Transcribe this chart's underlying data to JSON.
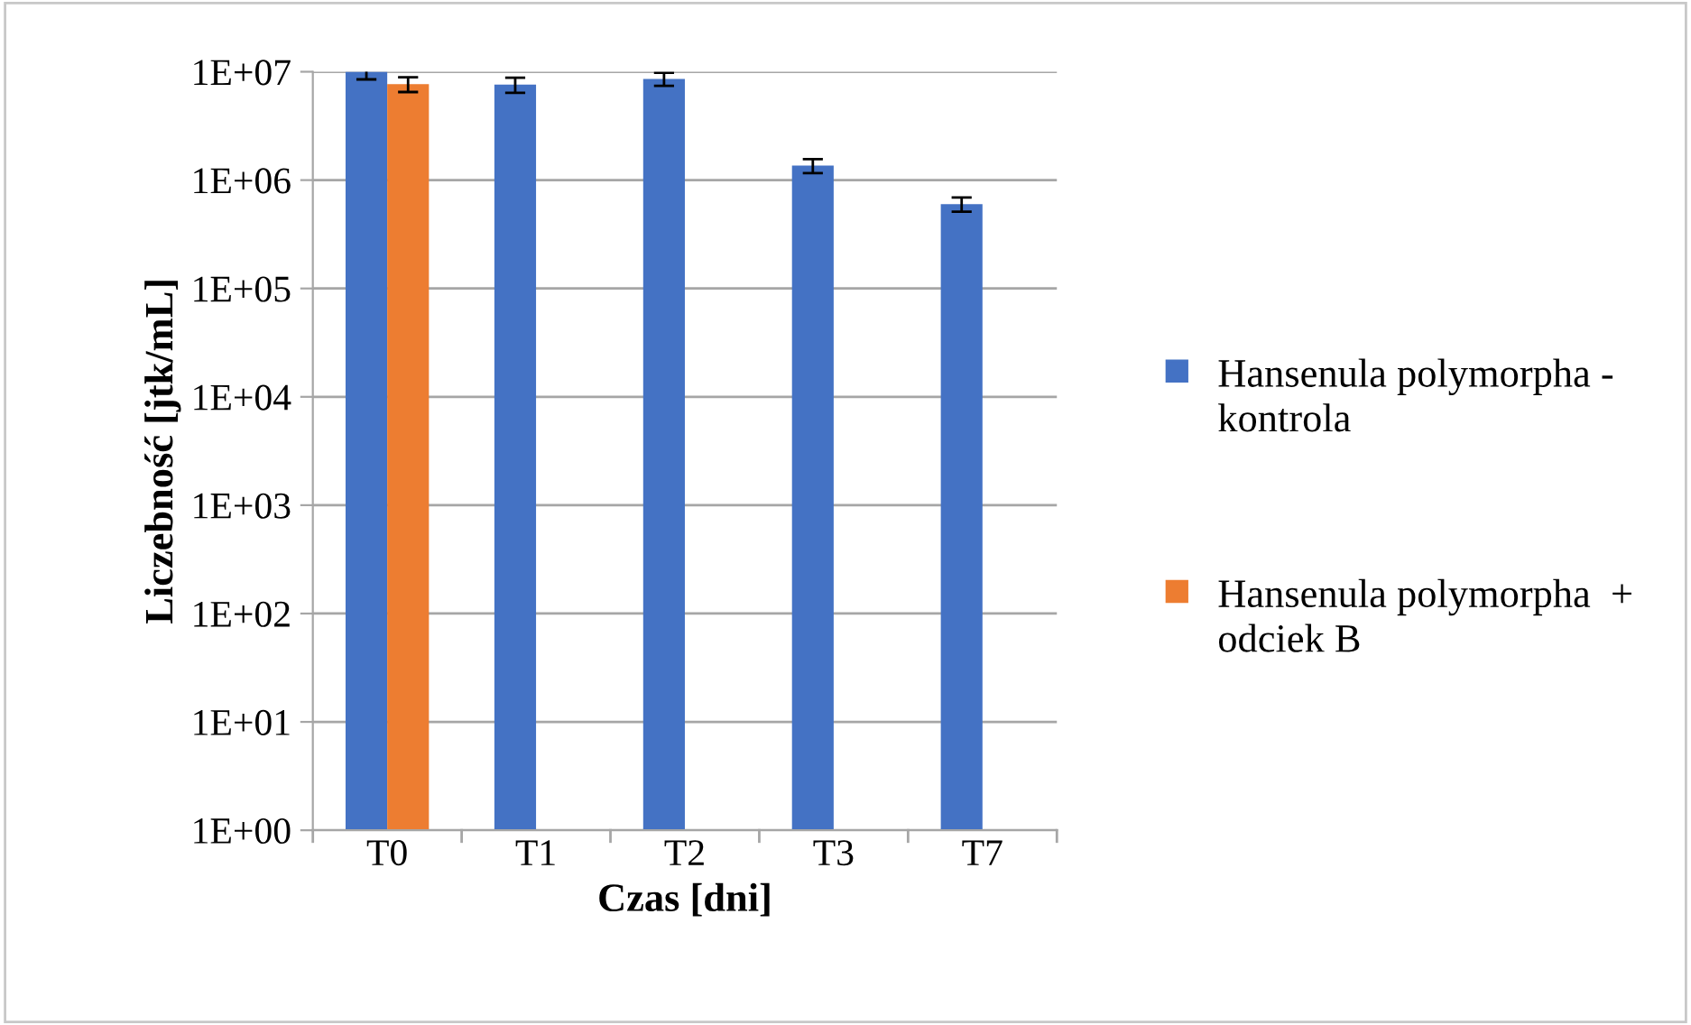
{
  "chart_data": {
    "type": "bar",
    "xlabel": "Czas [dni]",
    "ylabel": "Liczebność [jtk/mL]",
    "categories": [
      "T0",
      "T1",
      "T2",
      "T3",
      "T7"
    ],
    "series": [
      {
        "name": "Hansenula polymorpha - kontrola",
        "color": "#4472c4",
        "values": [
          10000000,
          7600000,
          8600000,
          1360000,
          600000
        ],
        "errors": [
          1500000,
          1200000,
          1200000,
          200000,
          90000
        ]
      },
      {
        "name": "Hansenula polymorpha  + odciek B",
        "color": "#ed7d31",
        "values": [
          7700000,
          null,
          null,
          null,
          null
        ],
        "errors": [
          1200000,
          null,
          null,
          null,
          null
        ]
      }
    ],
    "log": true,
    "ylim": [
      1,
      10000000
    ],
    "yticks": [
      {
        "value": 1,
        "label": "1E+00"
      },
      {
        "value": 10,
        "label": "1E+01"
      },
      {
        "value": 100,
        "label": "1E+02"
      },
      {
        "value": 1000,
        "label": "1E+03"
      },
      {
        "value": 10000,
        "label": "1E+04"
      },
      {
        "value": 100000,
        "label": "1E+05"
      },
      {
        "value": 1000000,
        "label": "1E+06"
      },
      {
        "value": 10000000,
        "label": "1E+07"
      }
    ],
    "grid": "y",
    "legend": "right"
  }
}
